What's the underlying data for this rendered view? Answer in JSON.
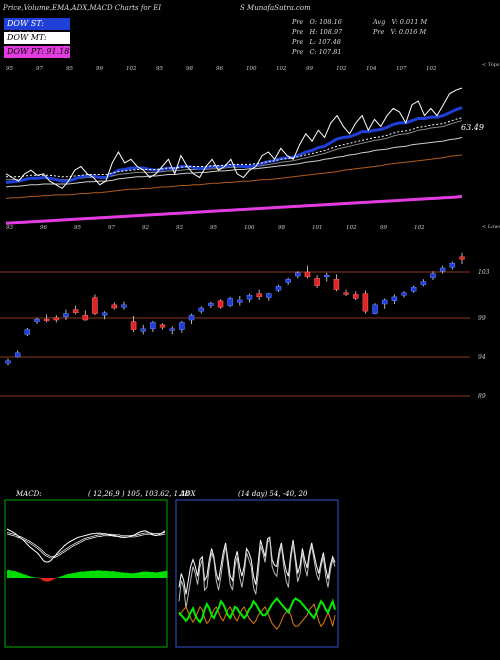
{
  "header": {
    "left": "Price,Volume,EMA,ADX,MACD Charts for EI",
    "right": "S MunafaSutra.com"
  },
  "legend": [
    {
      "label": "DOW ST: 104.14",
      "bg": "#1f3fd6",
      "fg": "#ffffff"
    },
    {
      "label": "DOW MT: 101.65",
      "bg": "#ffffff",
      "fg": "#000000"
    },
    {
      "label": "DOW PT: 91.18",
      "bg": "#e23ce0",
      "fg": "#000000"
    }
  ],
  "stats": [
    {
      "label": "Pre",
      "key": "O:",
      "value": "108.16"
    },
    {
      "label": "Pre",
      "key": "H:",
      "value": "108.97"
    },
    {
      "label": "Pre",
      "key": "L:",
      "value": "107.48"
    },
    {
      "label": "Pre",
      "key": "C:",
      "value": "107.81"
    }
  ],
  "volume_stats": [
    {
      "label": "Avg",
      "text": "V: 0.011 M"
    },
    {
      "label": "Pre",
      "text": "V: 0.016  M"
    }
  ],
  "colors": {
    "bg": "#000000",
    "up": "#1e3fd8",
    "down": "#e02424",
    "level_line": "#8b3a1a",
    "ema_short": "#1f3fd6",
    "ema_long": "#e23ce0",
    "macd_hist": "#00dd00",
    "adx_line": "#ffffff",
    "plus_di": "#00ee00",
    "minus_di": "#e07a10"
  },
  "chart_data": [
    {
      "type": "line",
      "name": "price-ema",
      "y_label_right": "< Tops",
      "tops": [
        "95",
        "97",
        "95",
        "99",
        "102",
        "95",
        "98",
        "96",
        "100",
        "102",
        "99",
        "102",
        "104",
        "107",
        "102"
      ],
      "bottom_marks": [
        "93",
        "96",
        "95",
        "97",
        "92",
        "93",
        "95",
        "100",
        "98",
        "101",
        "102",
        "99",
        "102"
      ],
      "bottom_right_label": "< Lows",
      "last_value_label": "63.49",
      "price": [
        96,
        95.5,
        95,
        96,
        96.5,
        95.8,
        96,
        95,
        94.5,
        94,
        95,
        96.5,
        97,
        96,
        95.5,
        94.5,
        95,
        97.5,
        99,
        97.5,
        98,
        97,
        96.5,
        95.5,
        96,
        97,
        98,
        96,
        98.5,
        97,
        96,
        95.5,
        97,
        98,
        96.5,
        97,
        98,
        96,
        95.5,
        96.5,
        97,
        98.5,
        99,
        98,
        99.5,
        98.5,
        98,
        100,
        101.5,
        100.5,
        102,
        101,
        103,
        104,
        102.5,
        101.5,
        103,
        104,
        102,
        103.5,
        102.5,
        104,
        105,
        104.5,
        103,
        105.5,
        106,
        104,
        105,
        104,
        105.5,
        107,
        107.5,
        107.8
      ],
      "ema_short": [
        94.8,
        94.9,
        95,
        95.2,
        95.4,
        95.4,
        95.5,
        95.4,
        95.2,
        95,
        95,
        95.3,
        95.6,
        95.7,
        95.7,
        95.5,
        95.5,
        96,
        96.5,
        96.6,
        96.8,
        96.8,
        96.8,
        96.6,
        96.5,
        96.6,
        96.8,
        96.7,
        97,
        97,
        96.9,
        96.7,
        96.8,
        97,
        97,
        97,
        97.2,
        97.1,
        97,
        97,
        97.1,
        97.4,
        97.7,
        97.8,
        98.1,
        98.2,
        98.3,
        98.6,
        99,
        99.2,
        99.6,
        99.8,
        100.3,
        100.8,
        101,
        101.1,
        101.4,
        101.8,
        101.8,
        102,
        102.1,
        102.4,
        102.8,
        103,
        103,
        103.3,
        103.6,
        103.6,
        103.8,
        103.8,
        104,
        104.4,
        104.8,
        105.1
      ],
      "ema_mid": [
        95.2,
        95.2,
        95.2,
        95.3,
        95.4,
        95.4,
        95.4,
        95.4,
        95.3,
        95.2,
        95.2,
        95.3,
        95.4,
        95.5,
        95.5,
        95.5,
        95.5,
        95.7,
        95.9,
        96,
        96.1,
        96.2,
        96.2,
        96.2,
        96.2,
        96.3,
        96.4,
        96.4,
        96.5,
        96.6,
        96.6,
        96.6,
        96.6,
        96.7,
        96.7,
        96.8,
        96.9,
        96.9,
        96.9,
        96.9,
        97,
        97.1,
        97.3,
        97.4,
        97.6,
        97.7,
        97.8,
        98,
        98.2,
        98.4,
        98.6,
        98.8,
        99.1,
        99.4,
        99.6,
        99.8,
        100,
        100.2,
        100.4,
        100.6,
        100.7,
        100.9,
        101.2,
        101.4,
        101.5,
        101.7,
        102,
        102.1,
        102.3,
        102.4,
        102.5,
        102.8,
        103.1,
        103.3
      ],
      "ema_long_white": [
        94.2,
        94.3,
        94.3,
        94.4,
        94.5,
        94.5,
        94.6,
        94.6,
        94.6,
        94.6,
        94.6,
        94.7,
        94.8,
        94.9,
        94.9,
        95,
        95,
        95.1,
        95.3,
        95.4,
        95.5,
        95.6,
        95.6,
        95.7,
        95.7,
        95.8,
        95.9,
        95.9,
        96,
        96.1,
        96.1,
        96.2,
        96.2,
        96.3,
        96.4,
        96.4,
        96.5,
        96.6,
        96.6,
        96.7,
        96.7,
        96.8,
        96.9,
        97,
        97.1,
        97.2,
        97.3,
        97.4,
        97.6,
        97.7,
        97.8,
        98,
        98.1,
        98.3,
        98.4,
        98.6,
        98.7,
        98.9,
        99,
        99.2,
        99.3,
        99.4,
        99.6,
        99.7,
        99.8,
        100,
        100.1,
        100.2,
        100.3,
        100.4,
        100.5,
        100.7,
        100.8,
        101
      ],
      "ema_orange": [
        92.6,
        92.7,
        92.7,
        92.8,
        92.9,
        92.9,
        93,
        93,
        93.1,
        93.1,
        93.1,
        93.2,
        93.3,
        93.3,
        93.4,
        93.4,
        93.5,
        93.6,
        93.7,
        93.8,
        93.9,
        93.9,
        94,
        94,
        94.1,
        94.2,
        94.2,
        94.3,
        94.4,
        94.4,
        94.5,
        94.5,
        94.6,
        94.7,
        94.7,
        94.8,
        94.8,
        94.9,
        95,
        95,
        95.1,
        95.2,
        95.2,
        95.3,
        95.4,
        95.5,
        95.6,
        95.7,
        95.8,
        95.9,
        96,
        96.1,
        96.2,
        96.3,
        96.5,
        96.6,
        96.7,
        96.8,
        96.9,
        97,
        97.1,
        97.3,
        97.4,
        97.5,
        97.6,
        97.7,
        97.8,
        97.9,
        98,
        98.1,
        98.2,
        98.4,
        98.5,
        98.6
      ],
      "ema_pink": [
        89.2,
        89.25,
        89.3,
        89.35,
        89.4,
        89.45,
        89.5,
        89.55,
        89.6,
        89.65,
        89.7,
        89.75,
        89.8,
        89.85,
        89.9,
        89.95,
        90,
        90.05,
        90.1,
        90.15,
        90.2,
        90.25,
        90.3,
        90.35,
        90.4,
        90.45,
        90.5,
        90.55,
        90.6,
        90.65,
        90.7,
        90.75,
        90.8,
        90.85,
        90.9,
        90.95,
        91,
        91.05,
        91.1,
        91.15,
        91.2,
        91.25,
        91.3,
        91.35,
        91.4,
        91.45,
        91.5,
        91.55,
        91.6,
        91.65,
        91.7,
        91.75,
        91.8,
        91.85,
        91.9,
        91.95,
        92,
        92.05,
        92.1,
        92.15,
        92.2,
        92.25,
        92.3,
        92.35,
        92.4,
        92.45,
        92.5,
        92.55,
        92.6,
        92.65,
        92.7,
        92.75,
        92.8,
        92.9
      ],
      "ylim": [
        88,
        110
      ]
    },
    {
      "type": "candlestick",
      "name": "daily-candles",
      "levels": [
        "103",
        "99",
        "94",
        "89"
      ],
      "candles": [
        {
          "o": 92.6,
          "h": 93.2,
          "l": 92.3,
          "c": 92.9
        },
        {
          "o": 93.4,
          "h": 94.2,
          "l": 93.3,
          "c": 93.9
        },
        {
          "o": 96.2,
          "h": 97.0,
          "l": 96.0,
          "c": 96.8
        },
        {
          "o": 97.8,
          "h": 98.3,
          "l": 97.5,
          "c": 98.1
        },
        {
          "o": 98.1,
          "h": 98.7,
          "l": 97.7,
          "c": 97.9
        },
        {
          "o": 98.3,
          "h": 98.6,
          "l": 97.7,
          "c": 98.0
        },
        {
          "o": 98.4,
          "h": 99.3,
          "l": 98.0,
          "c": 98.8
        },
        {
          "o": 99.3,
          "h": 99.8,
          "l": 98.7,
          "c": 98.9
        },
        {
          "o": 98.6,
          "h": 99.2,
          "l": 97.9,
          "c": 98.0
        },
        {
          "o": 100.8,
          "h": 101.2,
          "l": 98.6,
          "c": 98.8
        },
        {
          "o": 98.6,
          "h": 99.1,
          "l": 98.1,
          "c": 98.9
        },
        {
          "o": 99.9,
          "h": 100.2,
          "l": 99.3,
          "c": 99.5
        },
        {
          "o": 99.6,
          "h": 100.3,
          "l": 99.3,
          "c": 99.9
        },
        {
          "o": 97.8,
          "h": 98.5,
          "l": 96.5,
          "c": 96.8
        },
        {
          "o": 96.6,
          "h": 97.4,
          "l": 96.2,
          "c": 96.9
        },
        {
          "o": 96.9,
          "h": 97.9,
          "l": 96.5,
          "c": 97.7
        },
        {
          "o": 97.4,
          "h": 97.6,
          "l": 96.8,
          "c": 97.1
        },
        {
          "o": 96.7,
          "h": 97.2,
          "l": 96.2,
          "c": 96.9
        },
        {
          "o": 96.8,
          "h": 97.9,
          "l": 96.4,
          "c": 97.7
        },
        {
          "o": 98.0,
          "h": 98.8,
          "l": 97.5,
          "c": 98.6
        },
        {
          "o": 99.1,
          "h": 99.7,
          "l": 98.8,
          "c": 99.5
        },
        {
          "o": 99.8,
          "h": 100.3,
          "l": 99.5,
          "c": 100.1
        },
        {
          "o": 100.4,
          "h": 100.6,
          "l": 99.4,
          "c": 99.6
        },
        {
          "o": 99.8,
          "h": 100.9,
          "l": 99.6,
          "c": 100.7
        },
        {
          "o": 100.2,
          "h": 101.0,
          "l": 99.8,
          "c": 100.5
        },
        {
          "o": 100.6,
          "h": 101.3,
          "l": 100.2,
          "c": 101.1
        },
        {
          "o": 101.3,
          "h": 101.8,
          "l": 100.5,
          "c": 100.9
        },
        {
          "o": 100.8,
          "h": 101.4,
          "l": 100.4,
          "c": 101.3
        },
        {
          "o": 101.7,
          "h": 102.4,
          "l": 101.5,
          "c": 102.2
        },
        {
          "o": 102.7,
          "h": 103.3,
          "l": 102.4,
          "c": 103.1
        },
        {
          "o": 103.5,
          "h": 104.1,
          "l": 103.2,
          "c": 103.9
        },
        {
          "o": 104.0,
          "h": 104.8,
          "l": 103.2,
          "c": 103.4
        },
        {
          "o": 103.2,
          "h": 103.6,
          "l": 102.0,
          "c": 102.3
        },
        {
          "o": 103.4,
          "h": 103.9,
          "l": 102.8,
          "c": 103.6
        },
        {
          "o": 103.1,
          "h": 103.7,
          "l": 101.6,
          "c": 101.8
        },
        {
          "o": 101.4,
          "h": 101.8,
          "l": 101.0,
          "c": 101.2
        },
        {
          "o": 101.2,
          "h": 101.6,
          "l": 100.5,
          "c": 100.7
        },
        {
          "o": 101.3,
          "h": 101.7,
          "l": 98.8,
          "c": 99.1
        },
        {
          "o": 98.8,
          "h": 100.1,
          "l": 98.7,
          "c": 99.9
        },
        {
          "o": 100.0,
          "h": 100.7,
          "l": 99.4,
          "c": 100.5
        },
        {
          "o": 100.4,
          "h": 101.2,
          "l": 100.0,
          "c": 100.9
        },
        {
          "o": 101.1,
          "h": 101.6,
          "l": 100.8,
          "c": 101.4
        },
        {
          "o": 101.6,
          "h": 102.3,
          "l": 101.4,
          "c": 102.1
        },
        {
          "o": 102.4,
          "h": 103.1,
          "l": 102.2,
          "c": 102.8
        },
        {
          "o": 103.3,
          "h": 104.1,
          "l": 103.0,
          "c": 103.8
        },
        {
          "o": 104.1,
          "h": 104.8,
          "l": 103.8,
          "c": 104.5
        },
        {
          "o": 104.6,
          "h": 105.3,
          "l": 104.3,
          "c": 105.1
        },
        {
          "o": 105.9,
          "h": 106.4,
          "l": 105.0,
          "c": 105.6
        }
      ],
      "ylim": [
        88,
        108
      ]
    },
    {
      "type": "bar",
      "name": "macd",
      "title": "MACD:",
      "params": "( 12,26,9 ) 105, 103.62, 1.38",
      "histogram": [
        2.0,
        1.9,
        1.8,
        1.7,
        1.5,
        1.3,
        1.1,
        0.9,
        0.7,
        0.5,
        0.3,
        0.2,
        0.1,
        0.1,
        -0.2,
        -0.6,
        -0.8,
        -0.9,
        -0.8,
        -0.6,
        -0.3,
        0.0,
        0.2,
        0.4,
        0.6,
        0.8,
        1.0,
        1.1,
        1.2,
        1.3,
        1.4,
        1.5,
        1.6,
        1.6,
        1.7,
        1.7,
        1.8,
        1.8,
        1.8,
        1.9,
        1.9,
        1.8,
        1.8,
        1.8,
        1.7,
        1.7,
        1.7,
        1.6,
        1.5,
        1.4,
        1.4,
        1.3,
        1.3,
        1.2,
        1.2,
        1.2,
        1.3,
        1.4,
        1.5,
        1.6,
        1.6,
        1.6,
        1.5,
        1.5,
        1.4,
        1.4,
        1.5,
        1.6,
        1.7,
        1.8
      ],
      "macd": [
        4.5,
        4.3,
        4.1,
        3.9,
        3.6,
        3.3,
        3.0,
        2.7,
        2.3,
        1.9,
        1.5,
        1.2,
        0.9,
        0.6,
        0.2,
        -0.3,
        -0.8,
        -1.0,
        -1.0,
        -0.8,
        -0.4,
        0.0,
        0.5,
        0.9,
        1.3,
        1.7,
        2.0,
        2.3,
        2.5,
        2.7,
        2.9,
        3.1,
        3.2,
        3.3,
        3.4,
        3.5,
        3.6,
        3.7,
        3.7,
        3.8,
        3.8,
        3.8,
        3.7,
        3.7,
        3.6,
        3.5,
        3.4,
        3.4,
        3.3,
        3.2,
        3.1,
        3.1,
        3.1,
        3.2,
        3.3,
        3.4,
        3.6,
        3.8,
        4.0,
        4.1,
        4.2,
        4.1,
        3.9,
        3.7,
        3.5,
        3.4,
        3.5,
        3.7,
        3.9,
        4.2
      ],
      "signal": [
        3.8,
        3.7,
        3.6,
        3.5,
        3.4,
        3.2,
        3.1,
        2.9,
        2.7,
        2.5,
        2.3,
        2.0,
        1.8,
        1.5,
        1.2,
        0.9,
        0.5,
        0.2,
        0.0,
        -0.2,
        -0.2,
        -0.1,
        0.1,
        0.3,
        0.6,
        0.8,
        1.1,
        1.3,
        1.6,
        1.8,
        2.0,
        2.2,
        2.4,
        2.6,
        2.8,
        2.9,
        3.0,
        3.1,
        3.2,
        3.3,
        3.4,
        3.4,
        3.5,
        3.5,
        3.5,
        3.5,
        3.5,
        3.4,
        3.4,
        3.4,
        3.3,
        3.3,
        3.3,
        3.3,
        3.3,
        3.3,
        3.3,
        3.4,
        3.5,
        3.6,
        3.7,
        3.7,
        3.7,
        3.7,
        3.6,
        3.6,
        3.6,
        3.6,
        3.7,
        3.8
      ]
    },
    {
      "type": "line",
      "name": "adx",
      "title": "ADX",
      "params": "(14 day) 54, -40, 20",
      "adx": [
        30,
        45,
        40,
        25,
        35,
        45,
        55,
        50,
        42,
        55,
        60,
        38,
        40,
        55,
        65,
        60,
        45,
        38,
        48,
        60,
        70,
        55,
        42,
        38,
        55,
        62,
        48,
        40,
        50,
        65,
        60,
        55,
        40,
        35,
        50,
        70,
        65,
        58,
        72,
        75,
        55,
        50,
        48,
        62,
        70,
        55,
        45,
        40,
        60,
        72,
        58,
        44,
        50,
        65,
        55,
        48,
        62,
        70,
        60,
        50,
        45,
        55,
        62,
        48,
        40,
        52,
        60,
        55
      ],
      "adx2": [
        40,
        50,
        45,
        35,
        45,
        55,
        60,
        55,
        48,
        60,
        62,
        45,
        48,
        60,
        68,
        62,
        50,
        45,
        55,
        65,
        72,
        60,
        48,
        45,
        60,
        66,
        55,
        48,
        55,
        68,
        65,
        60,
        48,
        42,
        58,
        74,
        68,
        62,
        75,
        76,
        60,
        56,
        55,
        66,
        72,
        60,
        52,
        48,
        64,
        74,
        62,
        50,
        56,
        68,
        60,
        54,
        65,
        72,
        64,
        56,
        50,
        58,
        65,
        54,
        46,
        56,
        62,
        58
      ],
      "plus_di": [
        22,
        20,
        18,
        16,
        18,
        22,
        25,
        20,
        17,
        15,
        18,
        24,
        28,
        25,
        20,
        18,
        22,
        25,
        30,
        28,
        24,
        20,
        18,
        22,
        26,
        25,
        22,
        20,
        18,
        20,
        24,
        26,
        30,
        28,
        25,
        22,
        20,
        20,
        22,
        25,
        28,
        30,
        32,
        30,
        28,
        26,
        24,
        22,
        26,
        30,
        32,
        31,
        30,
        28,
        26,
        24,
        22,
        20,
        18,
        22,
        26,
        30,
        28,
        24,
        22,
        26,
        30,
        24
      ],
      "minus_di": [
        20,
        22,
        24,
        26,
        22,
        18,
        15,
        18,
        22,
        26,
        24,
        18,
        14,
        16,
        20,
        24,
        26,
        22,
        18,
        16,
        20,
        24,
        26,
        22,
        18,
        16,
        20,
        24,
        26,
        22,
        18,
        16,
        14,
        16,
        20,
        22,
        24,
        26,
        22,
        18,
        14,
        12,
        10,
        12,
        16,
        20,
        22,
        24,
        20,
        14,
        12,
        12,
        14,
        16,
        18,
        20,
        24,
        26,
        28,
        22,
        16,
        12,
        14,
        18,
        22,
        18,
        12,
        20
      ],
      "ylim": [
        0,
        100
      ]
    }
  ]
}
